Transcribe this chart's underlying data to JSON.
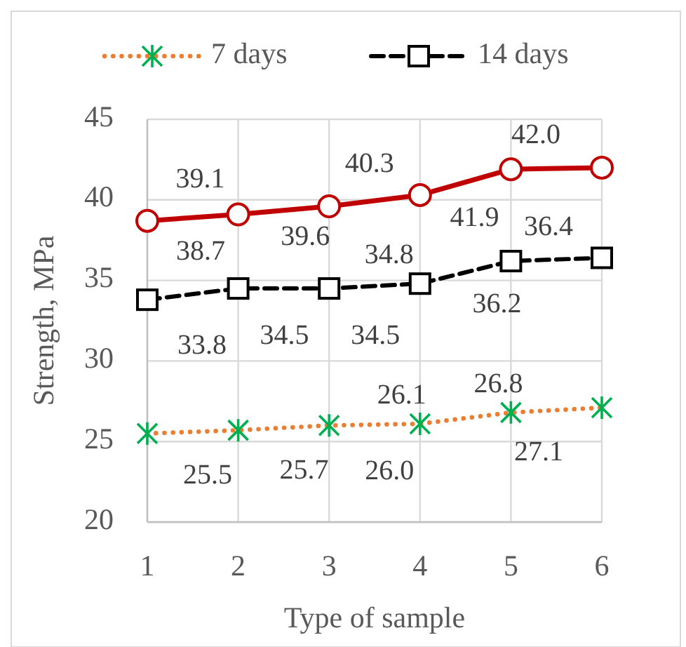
{
  "chart_data": {
    "type": "line",
    "xlabel": "Type of sample",
    "ylabel": "Strength, MPa",
    "categories": [
      "1",
      "2",
      "3",
      "4",
      "5",
      "6"
    ],
    "ylim": [
      20,
      45
    ],
    "yticks": [
      20,
      25,
      30,
      35,
      40,
      45
    ],
    "grid": true,
    "legend": "top",
    "series": [
      {
        "name": "7 days",
        "color": "#ed7d31",
        "marker": "cross",
        "line_style": "dotted",
        "values": [
          25.5,
          25.7,
          26.0,
          26.1,
          26.8,
          27.1
        ],
        "value_labels": [
          "25.5",
          "25.7",
          "26.0",
          "26.1",
          "26.8",
          "27.1"
        ]
      },
      {
        "name": "14 days",
        "color": "#000000",
        "marker": "square",
        "line_style": "dashed",
        "values": [
          33.8,
          34.5,
          34.5,
          34.8,
          36.2,
          36.4
        ],
        "value_labels": [
          "33.8",
          "34.5",
          "34.5",
          "34.8",
          "36.2",
          "36.4"
        ]
      },
      {
        "color": "#c00000",
        "marker": "circle",
        "line_style": "solid",
        "values": [
          38.7,
          39.1,
          39.6,
          40.3,
          41.9,
          42.0
        ],
        "value_labels": [
          "38.7",
          "39.1",
          "39.6",
          "40.3",
          "41.9",
          "42.0"
        ]
      }
    ]
  }
}
